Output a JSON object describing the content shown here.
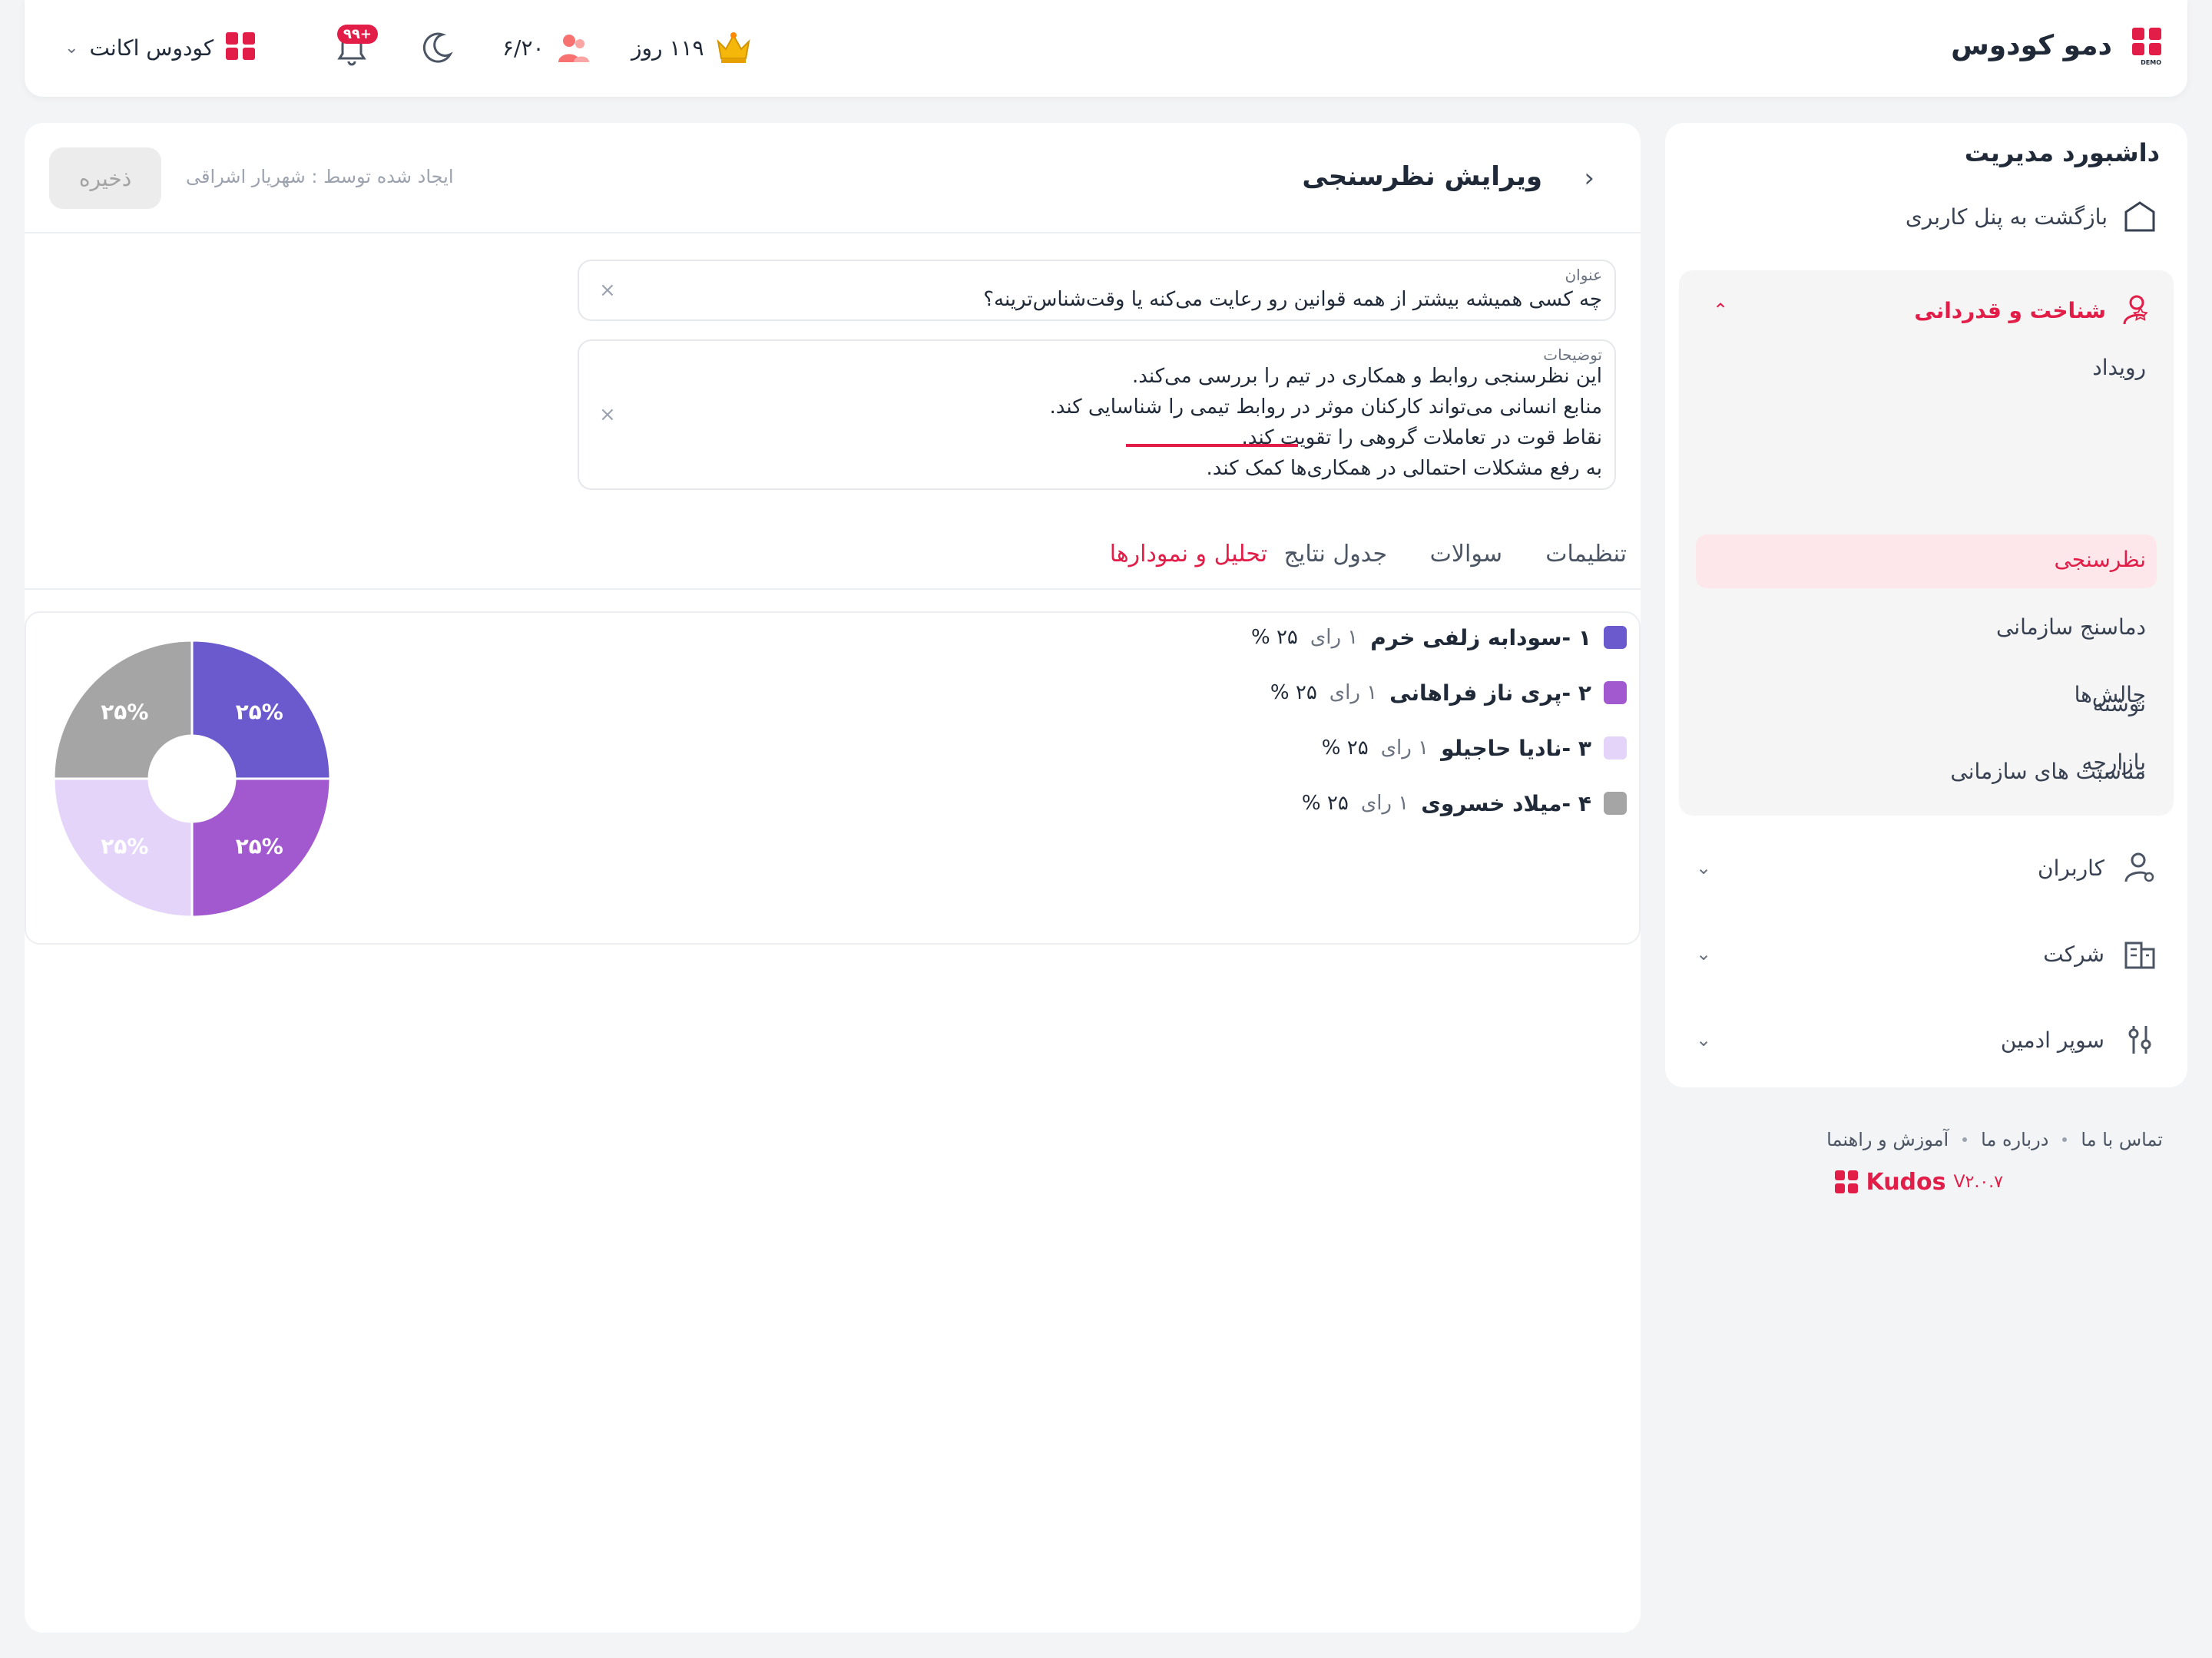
{
  "header": {
    "brand_name": "دمو کودوس",
    "logo_badge": "DEMO",
    "days_left": "۱۱۹ روز",
    "users_count": "۶/۲۰",
    "notifications_badge": "+۹۹",
    "account_label": "کودوس اکانت"
  },
  "sidebar": {
    "title": "داشبورد مدیریت",
    "back_label": "بازگشت به پنل کاربری",
    "group_label": "شناخت و قدردانی",
    "sub_items": [
      "رویداد",
      "نظرسنجی",
      "دماسنج سازمانی",
      "چالش‌ها",
      "بازارچه",
      "نوشته",
      "مناسبت های سازمانی"
    ],
    "active_index": 1,
    "rows": [
      "کاربران",
      "شرکت",
      "سوپر ادمین"
    ]
  },
  "footer": {
    "links": [
      "تماس با ما",
      "درباره ما",
      "آموزش و راهنما"
    ],
    "brand": "Kudos",
    "version": "V۲.۰.۷"
  },
  "main": {
    "title": "ویرایش نظرسنجی",
    "created_by": "ایجاد شده توسط : شهریار اشراقی",
    "save_label": "ذخیره",
    "title_field": {
      "label": "عنوان",
      "value": "چه کسی همیشه بیشتر از همه قوانین رو رعایت می‌کنه یا وقت‌شناس‌ترینه؟"
    },
    "description_field": {
      "label": "توضیحات",
      "value": "این نظرسنجی روابط و همکاری در تیم را بررسی می‌کند.\nمنابع انسانی می‌تواند کارکنان موثر در روابط تیمی را شناسایی کند.\nنقاط قوت در تعاملات گروهی را تقویت کند.\nبه رفع مشکلات احتمالی در همکاری‌ها کمک کند."
    },
    "tabs": [
      "تنظیمات",
      "سوالات",
      "جدول نتایج",
      "تحلیل و نمودارها"
    ],
    "active_tab": 3
  },
  "chart_data": {
    "type": "pie",
    "title": "",
    "series": [
      {
        "rank": "۱ - ",
        "name": "سودابه زلفی خرم",
        "votes": "۱ رای",
        "pct_label": "۲۵ %",
        "slice_label": "۲۵%",
        "value": 25,
        "color": "#6a5acd"
      },
      {
        "rank": "۲ - ",
        "name": "پری ناز فراهانی",
        "votes": "۱ رای",
        "pct_label": "۲۵ %",
        "slice_label": "۲۵%",
        "value": 25,
        "color": "#a259d0"
      },
      {
        "rank": "۳ - ",
        "name": "نادیا حاجیلو",
        "votes": "۱ رای",
        "pct_label": "۲۵ %",
        "slice_label": "۲۵%",
        "value": 25,
        "color": "#e4d4fa"
      },
      {
        "rank": "۴ - ",
        "name": "میلاد خسروی",
        "votes": "۱ رای",
        "pct_label": "۲۵ %",
        "slice_label": "۲۵%",
        "value": 25,
        "color": "#a5a5a5"
      }
    ]
  }
}
